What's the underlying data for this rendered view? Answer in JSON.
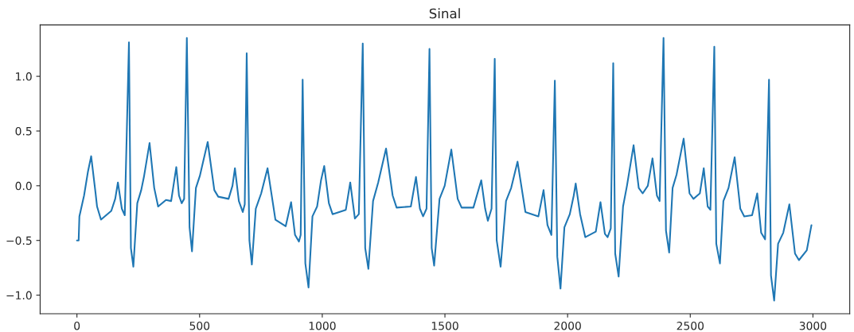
{
  "chart_data": {
    "type": "line",
    "title": "Sinal",
    "x": [
      0,
      7,
      10,
      29,
      45,
      58,
      76,
      82,
      98,
      140,
      156,
      167,
      183,
      195,
      212,
      220,
      230,
      246,
      262,
      273,
      296,
      315,
      331,
      363,
      384,
      405,
      416,
      427,
      437,
      448,
      459,
      469,
      485,
      501,
      533,
      560,
      576,
      618,
      634,
      644,
      660,
      676,
      684,
      692,
      703,
      713,
      729,
      751,
      777,
      809,
      851,
      873,
      889,
      905,
      912,
      920,
      931,
      944,
      960,
      979,
      995,
      1008,
      1027,
      1042,
      1096,
      1114,
      1133,
      1149,
      1165,
      1175,
      1188,
      1207,
      1228,
      1260,
      1287,
      1303,
      1361,
      1382,
      1398,
      1411,
      1425,
      1437,
      1446,
      1456,
      1478,
      1499,
      1526,
      1552,
      1568,
      1616,
      1648,
      1664,
      1675,
      1690,
      1703,
      1711,
      1727,
      1749,
      1770,
      1796,
      1828,
      1881,
      1902,
      1918,
      1934,
      1948,
      1958,
      1971,
      1987,
      2009,
      2025,
      2033,
      2051,
      2072,
      2115,
      2134,
      2152,
      2163,
      2176,
      2186,
      2194,
      2208,
      2226,
      2242,
      2269,
      2290,
      2306,
      2327,
      2346,
      2364,
      2375,
      2391,
      2401,
      2414,
      2428,
      2444,
      2473,
      2497,
      2513,
      2539,
      2555,
      2571,
      2582,
      2598,
      2606,
      2621,
      2635,
      2656,
      2681,
      2704,
      2720,
      2752,
      2773,
      2789,
      2805,
      2821,
      2829,
      2842,
      2858,
      2879,
      2904,
      2927,
      2943,
      2975,
      2994
    ],
    "series": [
      {
        "color": "#1f77b4",
        "values": [
          -0.5,
          -0.5,
          -0.28,
          -0.09,
          0.13,
          0.27,
          -0.07,
          -0.19,
          -0.31,
          -0.23,
          -0.12,
          0.03,
          -0.21,
          -0.27,
          1.31,
          -0.57,
          -0.74,
          -0.16,
          -0.04,
          0.08,
          0.39,
          -0.02,
          -0.19,
          -0.13,
          -0.14,
          0.17,
          -0.09,
          -0.16,
          -0.12,
          1.35,
          -0.38,
          -0.6,
          -0.02,
          0.09,
          0.4,
          -0.04,
          -0.1,
          -0.12,
          0.0,
          0.16,
          -0.14,
          -0.24,
          -0.17,
          1.21,
          -0.5,
          -0.72,
          -0.21,
          -0.07,
          0.16,
          -0.31,
          -0.37,
          -0.15,
          -0.45,
          -0.51,
          -0.45,
          0.97,
          -0.71,
          -0.93,
          -0.28,
          -0.19,
          0.05,
          0.18,
          -0.16,
          -0.26,
          -0.22,
          0.03,
          -0.3,
          -0.26,
          1.3,
          -0.57,
          -0.76,
          -0.14,
          0.03,
          0.34,
          -0.09,
          -0.2,
          -0.19,
          0.08,
          -0.21,
          -0.28,
          -0.21,
          1.25,
          -0.57,
          -0.73,
          -0.12,
          0.0,
          0.33,
          -0.12,
          -0.2,
          -0.2,
          0.05,
          -0.21,
          -0.32,
          -0.21,
          1.16,
          -0.5,
          -0.74,
          -0.14,
          -0.02,
          0.22,
          -0.24,
          -0.28,
          -0.04,
          -0.36,
          -0.45,
          0.96,
          -0.65,
          -0.94,
          -0.38,
          -0.26,
          -0.09,
          0.02,
          -0.26,
          -0.47,
          -0.42,
          -0.15,
          -0.44,
          -0.47,
          -0.39,
          1.12,
          -0.62,
          -0.83,
          -0.19,
          0.0,
          0.37,
          -0.02,
          -0.07,
          0.0,
          0.25,
          -0.09,
          -0.14,
          1.35,
          -0.41,
          -0.61,
          -0.02,
          0.1,
          0.43,
          -0.07,
          -0.12,
          -0.07,
          0.16,
          -0.19,
          -0.22,
          1.27,
          -0.53,
          -0.71,
          -0.14,
          -0.02,
          0.26,
          -0.21,
          -0.28,
          -0.27,
          -0.07,
          -0.43,
          -0.49,
          0.97,
          -0.82,
          -1.05,
          -0.53,
          -0.43,
          -0.17,
          -0.62,
          -0.68,
          -0.59,
          -0.36
        ]
      }
    ],
    "xlim": [
      -150,
      3150
    ],
    "ylim": [
      -1.17,
      1.47
    ],
    "xticks": [
      0,
      500,
      1000,
      1500,
      2000,
      2500,
      3000
    ],
    "yticks": [
      {
        "value": -1.0,
        "label": "−1.0"
      },
      {
        "value": -0.5,
        "label": "−0.5"
      },
      {
        "value": 0.0,
        "label": "0.0"
      },
      {
        "value": 0.5,
        "label": "0.5"
      },
      {
        "value": 1.0,
        "label": "1.0"
      }
    ],
    "grid": false,
    "legend": false,
    "line_style": "solid",
    "marker": "none"
  }
}
